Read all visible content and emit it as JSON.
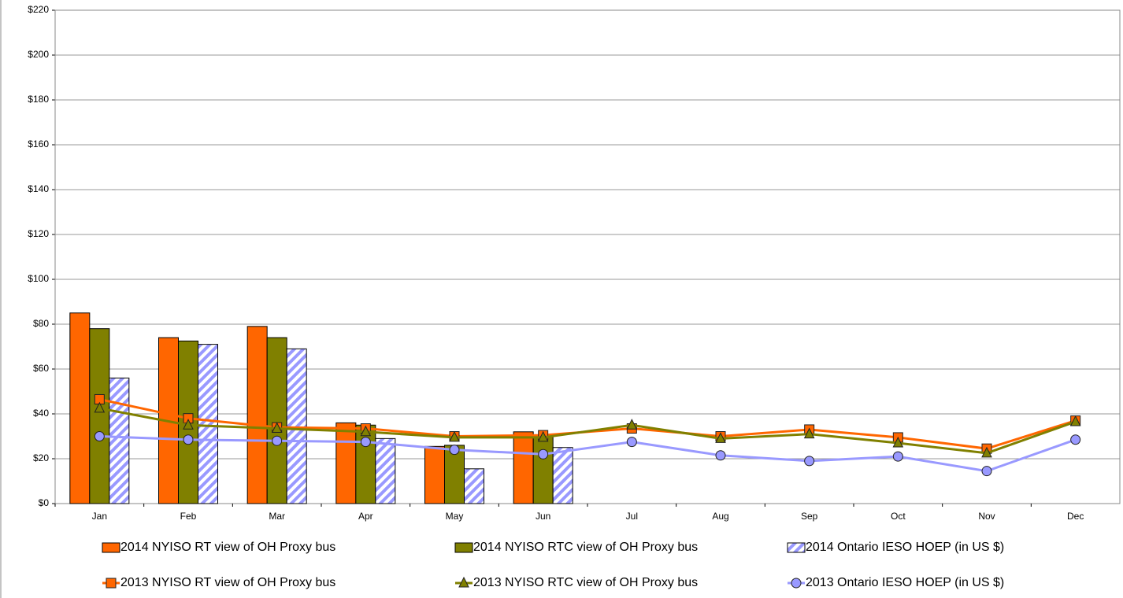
{
  "chart_data": {
    "type": "bar",
    "categories": [
      "Jan",
      "Feb",
      "Mar",
      "Apr",
      "May",
      "Jun",
      "Jul",
      "Aug",
      "Sep",
      "Oct",
      "Nov",
      "Dec"
    ],
    "ylim": [
      0,
      220
    ],
    "yticks": [
      {
        "value": 0,
        "label": "$0"
      },
      {
        "value": 20,
        "label": "$20"
      },
      {
        "value": 40,
        "label": "$40"
      },
      {
        "value": 60,
        "label": "$60"
      },
      {
        "value": 80,
        "label": "$80"
      },
      {
        "value": 100,
        "label": "$100"
      },
      {
        "value": 120,
        "label": "$120"
      },
      {
        "value": 140,
        "label": "$140"
      },
      {
        "value": 160,
        "label": "$160"
      },
      {
        "value": 180,
        "label": "$180"
      },
      {
        "value": 200,
        "label": "$200"
      },
      {
        "value": 220,
        "label": "$220"
      }
    ],
    "grid": true,
    "series": [
      {
        "name": "2014 NYISO RT view of OH Proxy bus",
        "kind": "bar",
        "color": "#ff6600",
        "values": [
          85,
          74,
          79,
          36,
          25.5,
          32,
          null,
          null,
          null,
          null,
          null,
          null
        ]
      },
      {
        "name": "2014 NYISO RTC view of OH Proxy bus",
        "kind": "bar",
        "color": "#808000",
        "values": [
          78,
          72.5,
          74,
          35,
          26,
          30,
          null,
          null,
          null,
          null,
          null,
          null
        ]
      },
      {
        "name": "2014 Ontario IESO HOEP (in US $)",
        "kind": "bar",
        "pattern": "hatch",
        "color": "#9999ff",
        "values": [
          56,
          71,
          69,
          29,
          15.5,
          25,
          null,
          null,
          null,
          null,
          null,
          null
        ]
      },
      {
        "name": "2013 NYISO RT view of OH Proxy bus",
        "kind": "line",
        "marker": "square",
        "color": "#ff6600",
        "values": [
          46.5,
          38,
          34,
          33.5,
          30,
          30.5,
          33.5,
          30,
          33,
          29.5,
          24.5,
          37
        ]
      },
      {
        "name": "2013 NYISO RTC view of OH Proxy bus",
        "kind": "line",
        "marker": "triangle",
        "color": "#808000",
        "values": [
          42.5,
          35,
          33.5,
          32,
          29.5,
          29.5,
          35,
          29,
          31,
          27,
          22.5,
          36.5
        ]
      },
      {
        "name": "2013 Ontario IESO HOEP (in US $)",
        "kind": "line",
        "marker": "circle",
        "color": "#9999ff",
        "values": [
          30,
          28.5,
          28,
          27.5,
          24,
          22,
          27.5,
          21.5,
          19,
          21,
          14.5,
          28.5
        ]
      }
    ]
  }
}
